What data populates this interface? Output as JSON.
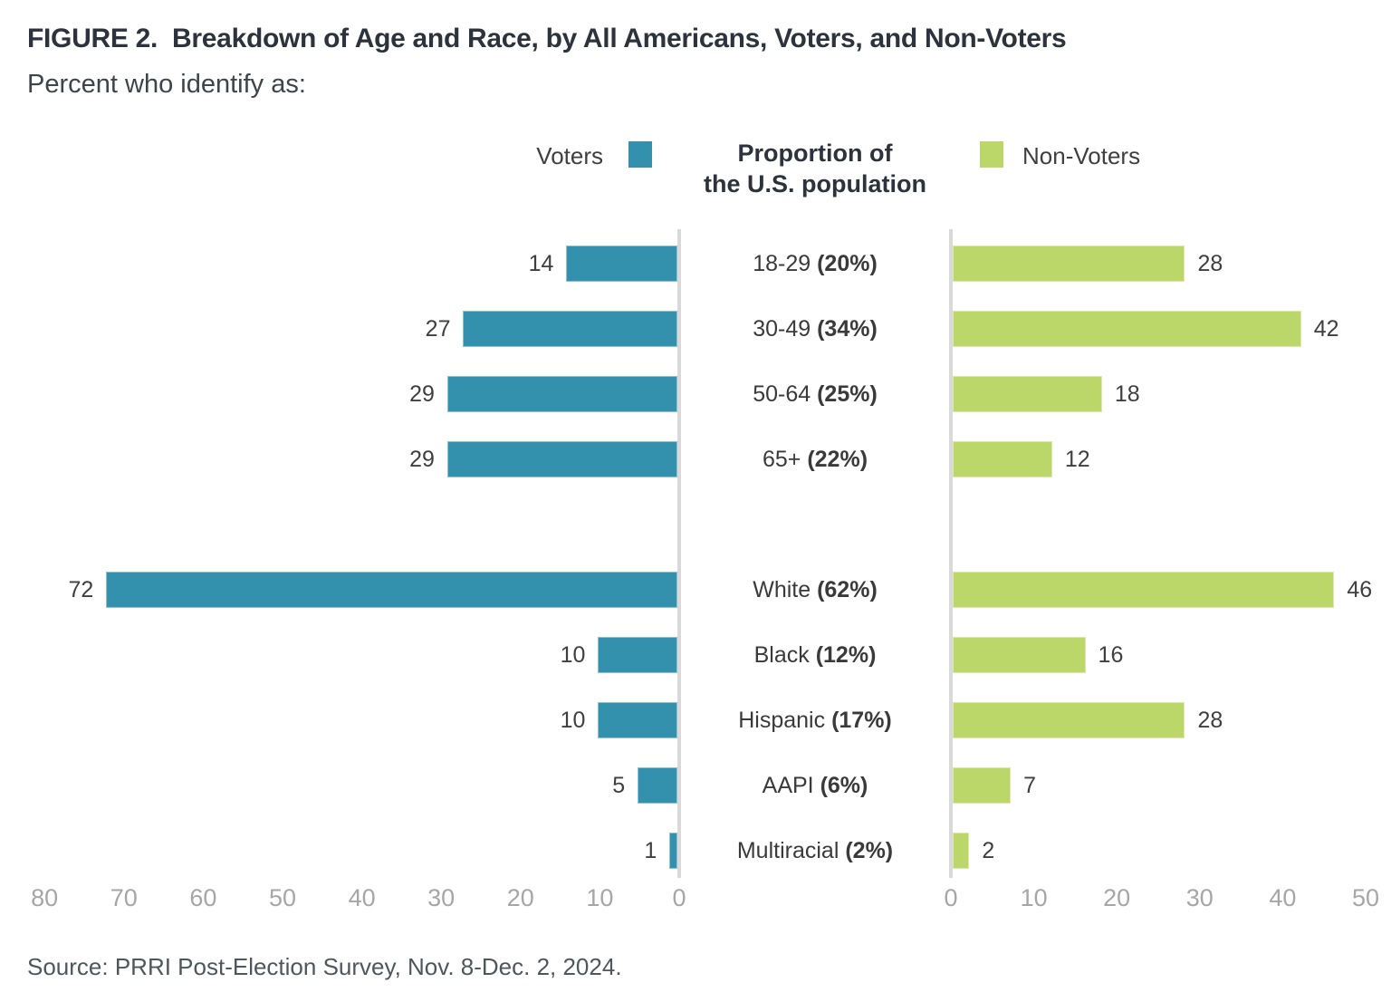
{
  "figure": {
    "title": "FIGURE 2.  Breakdown of Age and Race, by All Americans, Voters, and Non-Voters",
    "subtitle": "Percent who identify as:",
    "source": "Source: PRRI Post-Election Survey, Nov. 8-Dec. 2, 2024."
  },
  "legend": {
    "left_label": "Voters",
    "center_label_line1": "Proportion of",
    "center_label_line2": "the U.S. population",
    "right_label": "Non-Voters"
  },
  "colors": {
    "voters": "#3391ad",
    "non_voters": "#bcd769",
    "axis": "#d9d9d9",
    "tick_text": "#a6a6a6",
    "label_text": "#3a3a3a",
    "title_text": "#2d333c"
  },
  "chart_data": {
    "type": "bar",
    "orientation": "horizontal-diverging",
    "title": "FIGURE 2. Breakdown of Age and Race, by All Americans, Voters, and Non-Voters",
    "subtitle": "Percent who identify as:",
    "center_header": "Proportion of the U.S. population",
    "series": [
      {
        "name": "Voters",
        "side": "left"
      },
      {
        "name": "Non-Voters",
        "side": "right"
      }
    ],
    "sections": [
      {
        "name": "age",
        "rows": [
          {
            "category": "18-29",
            "population_share": "20%",
            "voters": 14,
            "non_voters": 28
          },
          {
            "category": "30-49",
            "population_share": "34%",
            "voters": 27,
            "non_voters": 42
          },
          {
            "category": "50-64",
            "population_share": "25%",
            "voters": 29,
            "non_voters": 18
          },
          {
            "category": "65+",
            "population_share": "22%",
            "voters": 29,
            "non_voters": 12
          }
        ]
      },
      {
        "name": "race",
        "rows": [
          {
            "category": "White",
            "population_share": "62%",
            "voters": 72,
            "non_voters": 46
          },
          {
            "category": "Black",
            "population_share": "12%",
            "voters": 10,
            "non_voters": 16
          },
          {
            "category": "Hispanic",
            "population_share": "17%",
            "voters": 10,
            "non_voters": 28
          },
          {
            "category": "AAPI",
            "population_share": "6%",
            "voters": 5,
            "non_voters": 7
          },
          {
            "category": "Multiracial",
            "population_share": "2%",
            "voters": 1,
            "non_voters": 2
          }
        ]
      }
    ],
    "left_axis": {
      "series": "Voters",
      "ticks": [
        80,
        70,
        60,
        50,
        40,
        30,
        20,
        10,
        0
      ],
      "range": [
        0,
        80
      ],
      "direction": "right-to-left"
    },
    "right_axis": {
      "series": "Non-Voters",
      "ticks": [
        0,
        10,
        20,
        30,
        40,
        50
      ],
      "range": [
        0,
        50
      ],
      "direction": "left-to-right"
    },
    "grid": false,
    "legend_position": "top-center"
  }
}
